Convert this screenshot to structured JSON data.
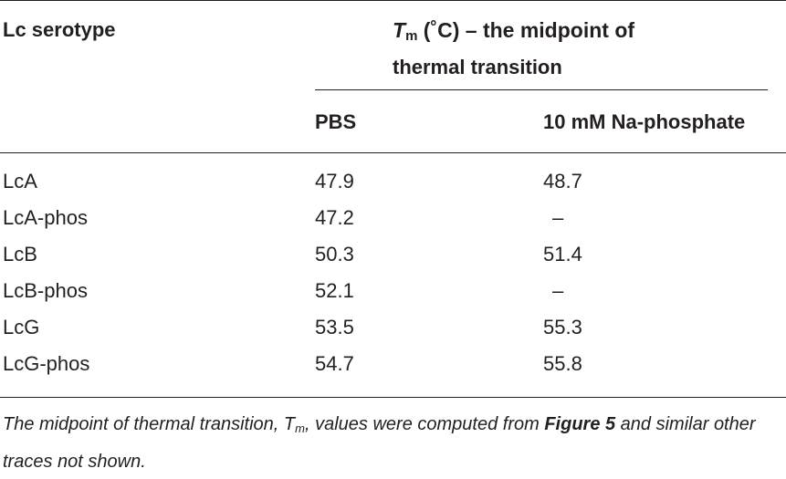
{
  "table": {
    "header": {
      "col1": "Lc serotype",
      "group_title_symbol": "T",
      "group_title_subscript": "m",
      "group_title_line1_rest": "(˚C) – the midpoint of",
      "group_title_line2": "thermal transition",
      "col2": "PBS",
      "col3": "10 mM Na-phosphate"
    },
    "rows": [
      {
        "serotype": "LcA",
        "pbs": "47.9",
        "na": "48.7"
      },
      {
        "serotype": "LcA-phos",
        "pbs": "47.2",
        "na": "–"
      },
      {
        "serotype": "LcB",
        "pbs": "50.3",
        "na": "51.4"
      },
      {
        "serotype": "LcB-phos",
        "pbs": "52.1",
        "na": "–"
      },
      {
        "serotype": "LcG",
        "pbs": "53.5",
        "na": "55.3"
      },
      {
        "serotype": "LcG-phos",
        "pbs": "54.7",
        "na": "55.8"
      }
    ]
  },
  "footnote": {
    "part1": "The midpoint of thermal transition, ",
    "symbol": "T",
    "subscript": "m",
    "part2": ", values were computed from ",
    "figure_ref": "Figure 5",
    "part3": " and similar other traces not shown."
  }
}
